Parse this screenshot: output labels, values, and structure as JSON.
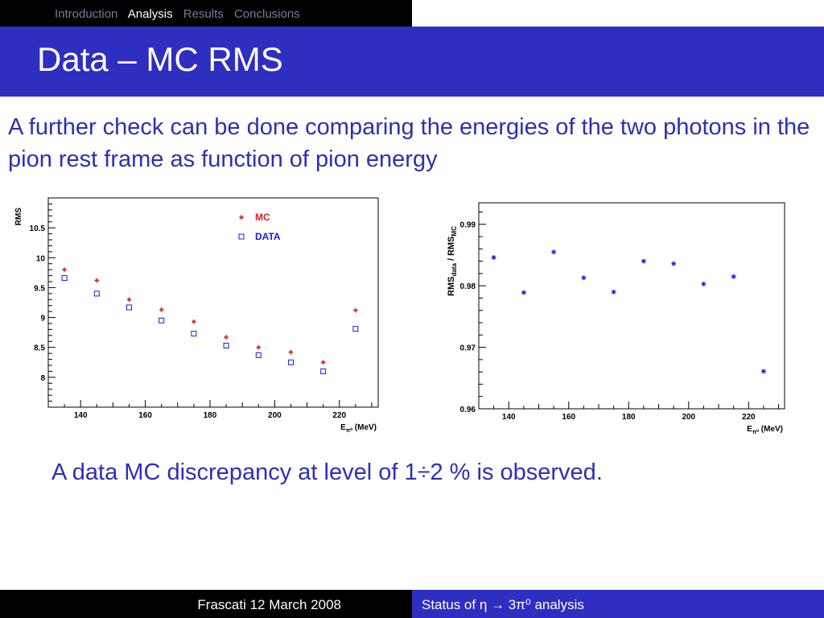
{
  "nav": {
    "items": [
      {
        "label": "Introduction",
        "active": false
      },
      {
        "label": "Analysis",
        "active": true
      },
      {
        "label": "Results",
        "active": false
      },
      {
        "label": "Conclusions",
        "active": false
      }
    ]
  },
  "slide": {
    "title": "Data – MC RMS",
    "intro": "A further check can be done comparing the energies of the two photons in the pion rest frame as function of pion energy",
    "conclusion": "A data MC discrepancy at level of 1÷2 % is observed."
  },
  "footer": {
    "left": "Frascati 12 March 2008",
    "right": "Status of η → 3π⁰ analysis"
  },
  "colors": {
    "title_bar": "#2e2ec0",
    "text": "#2e2eb6",
    "mc": "#e02020",
    "data": "#1a1ae0"
  },
  "chart_data": [
    {
      "type": "scatter",
      "ylabel": "RMS",
      "xlabel": "E",
      "xlabel_sub": "π⁰",
      "xlabel_unit": "(MeV)",
      "xlim": [
        130,
        232
      ],
      "ylim": [
        7.5,
        11
      ],
      "xticks": [
        140,
        160,
        180,
        200,
        220
      ],
      "yticks": [
        8,
        8.5,
        9,
        9.5,
        10,
        10.5
      ],
      "legend_position": "top-right",
      "series": [
        {
          "name": "MC",
          "marker": "plus-dot",
          "x": [
            135,
            145,
            155,
            165,
            175,
            185,
            195,
            205,
            215,
            225
          ],
          "y": [
            9.8,
            9.62,
            9.3,
            9.13,
            8.93,
            8.67,
            8.5,
            8.42,
            8.25,
            9.12
          ]
        },
        {
          "name": "DATA",
          "marker": "open-square",
          "x": [
            135,
            145,
            155,
            165,
            175,
            185,
            195,
            205,
            215,
            225
          ],
          "y": [
            9.66,
            9.4,
            9.17,
            8.95,
            8.73,
            8.53,
            8.37,
            8.25,
            8.1,
            8.81
          ]
        }
      ]
    },
    {
      "type": "scatter",
      "ylabel": "RMS",
      "ylabel_sub1": "data",
      "ylabel_mid": " / RMS",
      "ylabel_sub2": "MC",
      "xlabel": "E",
      "xlabel_sub": "π⁰",
      "xlabel_unit": "(MeV)",
      "xlim": [
        130,
        232
      ],
      "ylim": [
        0.96,
        0.9935
      ],
      "xticks": [
        140,
        160,
        180,
        200,
        220
      ],
      "yticks": [
        0.96,
        0.97,
        0.98,
        0.99
      ],
      "series": [
        {
          "marker": "star",
          "x": [
            135,
            145,
            155,
            165,
            175,
            185,
            195,
            205,
            215,
            225
          ],
          "y": [
            0.9846,
            0.9789,
            0.9855,
            0.9813,
            0.979,
            0.984,
            0.9836,
            0.9803,
            0.9815,
            0.9661
          ]
        }
      ]
    }
  ]
}
